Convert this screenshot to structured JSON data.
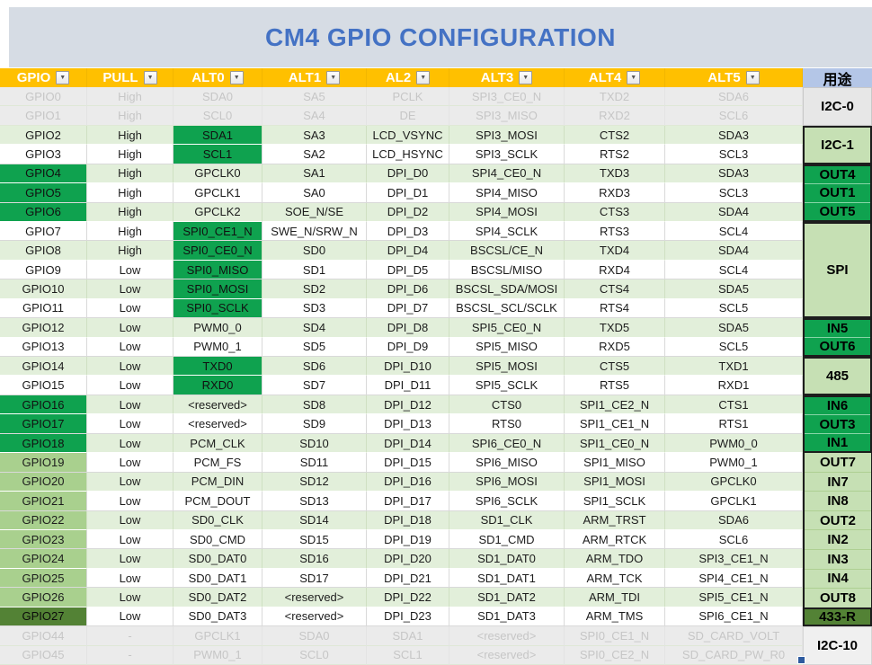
{
  "title": "CM4 GPIO CONFIGURATION",
  "colors": {
    "title_text": "#4472C4",
    "title_bg": "#D6DCE4",
    "header_bg": "#FFC000",
    "header_text": "#FFFFFF",
    "usage_header_bg": "#B4C6E7",
    "band_green": "#E2EFDA",
    "bright_green": "#0FA24F",
    "medium_green": "#A9D08E",
    "dark_green": "#538235",
    "merged_light_green": "#C6E0B4",
    "disabled_row_bg": "#EBEBEB",
    "disabled_text": "#C6C6C6"
  },
  "columns": [
    {
      "label": "GPIO",
      "filter": true
    },
    {
      "label": "PULL",
      "filter": true
    },
    {
      "label": "ALT0",
      "filter": true
    },
    {
      "label": "ALT1",
      "filter": true
    },
    {
      "label": "AL2",
      "filter": true
    },
    {
      "label": "ALT3",
      "filter": true
    },
    {
      "label": "ALT4",
      "filter": true
    },
    {
      "label": "ALT5",
      "filter": true
    },
    {
      "label": "用途",
      "filter": false
    }
  ],
  "rows": [
    {
      "gpio": "GPIO0",
      "pull": "High",
      "alt0": "SDA0",
      "alt1": "SA5",
      "al2": "PCLK",
      "alt3": "SPI3_CE0_N",
      "alt4": "TXD2",
      "alt5": "SDA6",
      "band": "gray"
    },
    {
      "gpio": "GPIO1",
      "pull": "High",
      "alt0": "SCL0",
      "alt1": "SA4",
      "al2": "DE",
      "alt3": "SPI3_MISO",
      "alt4": "RXD2",
      "alt5": "SCL6",
      "band": "gray"
    },
    {
      "gpio": "GPIO2",
      "pull": "High",
      "alt0": "SDA1",
      "alt1": "SA3",
      "al2": "LCD_VSYNC",
      "alt3": "SPI3_MOSI",
      "alt4": "CTS2",
      "alt5": "SDA3",
      "band": "green",
      "alt0_hl": true
    },
    {
      "gpio": "GPIO3",
      "pull": "High",
      "alt0": "SCL1",
      "alt1": "SA2",
      "al2": "LCD_HSYNC",
      "alt3": "SPI3_SCLK",
      "alt4": "RTS2",
      "alt5": "SCL3",
      "band": "white",
      "alt0_hl": true
    },
    {
      "gpio": "GPIO4",
      "pull": "High",
      "alt0": "GPCLK0",
      "alt1": "SA1",
      "al2": "DPI_D0",
      "alt3": "SPI4_CE0_N",
      "alt4": "TXD3",
      "alt5": "SDA3",
      "band": "green",
      "gpio_hl": "bright"
    },
    {
      "gpio": "GPIO5",
      "pull": "High",
      "alt0": "GPCLK1",
      "alt1": "SA0",
      "al2": "DPI_D1",
      "alt3": "SPI4_MISO",
      "alt4": "RXD3",
      "alt5": "SCL3",
      "band": "white",
      "gpio_hl": "bright"
    },
    {
      "gpio": "GPIO6",
      "pull": "High",
      "alt0": "GPCLK2",
      "alt1": "SOE_N/SE",
      "al2": "DPI_D2",
      "alt3": "SPI4_MOSI",
      "alt4": "CTS3",
      "alt5": "SDA4",
      "band": "green",
      "gpio_hl": "bright"
    },
    {
      "gpio": "GPIO7",
      "pull": "High",
      "alt0": "SPI0_CE1_N",
      "alt1": "SWE_N/SRW_N",
      "al2": "DPI_D3",
      "alt3": "SPI4_SCLK",
      "alt4": "RTS3",
      "alt5": "SCL4",
      "band": "white",
      "alt0_hl": true
    },
    {
      "gpio": "GPIO8",
      "pull": "High",
      "alt0": "SPI0_CE0_N",
      "alt1": "SD0",
      "al2": "DPI_D4",
      "alt3": "BSCSL/CE_N",
      "alt4": "TXD4",
      "alt5": "SDA4",
      "band": "green",
      "alt0_hl": true
    },
    {
      "gpio": "GPIO9",
      "pull": "Low",
      "alt0": "SPI0_MISO",
      "alt1": "SD1",
      "al2": "DPI_D5",
      "alt3": "BSCSL/MISO",
      "alt4": "RXD4",
      "alt5": "SCL4",
      "band": "white",
      "alt0_hl": true
    },
    {
      "gpio": "GPIO10",
      "pull": "Low",
      "alt0": "SPI0_MOSI",
      "alt1": "SD2",
      "al2": "DPI_D6",
      "alt3": "BSCSL_SDA/MOSI",
      "alt4": "CTS4",
      "alt5": "SDA5",
      "band": "green",
      "alt0_hl": true
    },
    {
      "gpio": "GPIO11",
      "pull": "Low",
      "alt0": "SPI0_SCLK",
      "alt1": "SD3",
      "al2": "DPI_D7",
      "alt3": "BSCSL_SCL/SCLK",
      "alt4": "RTS4",
      "alt5": "SCL5",
      "band": "white",
      "alt0_hl": true
    },
    {
      "gpio": "GPIO12",
      "pull": "Low",
      "alt0": "PWM0_0",
      "alt1": "SD4",
      "al2": "DPI_D8",
      "alt3": "SPI5_CE0_N",
      "alt4": "TXD5",
      "alt5": "SDA5",
      "band": "green"
    },
    {
      "gpio": "GPIO13",
      "pull": "Low",
      "alt0": "PWM0_1",
      "alt1": "SD5",
      "al2": "DPI_D9",
      "alt3": "SPI5_MISO",
      "alt4": "RXD5",
      "alt5": "SCL5",
      "band": "white"
    },
    {
      "gpio": "GPIO14",
      "pull": "Low",
      "alt0": "TXD0",
      "alt1": "SD6",
      "al2": "DPI_D10",
      "alt3": "SPI5_MOSI",
      "alt4": "CTS5",
      "alt5": "TXD1",
      "band": "green",
      "alt0_hl": true
    },
    {
      "gpio": "GPIO15",
      "pull": "Low",
      "alt0": "RXD0",
      "alt1": "SD7",
      "al2": "DPI_D11",
      "alt3": "SPI5_SCLK",
      "alt4": "RTS5",
      "alt5": "RXD1",
      "band": "white",
      "alt0_hl": true
    },
    {
      "gpio": "GPIO16",
      "pull": "Low",
      "alt0": "<reserved>",
      "alt1": "SD8",
      "al2": "DPI_D12",
      "alt3": "CTS0",
      "alt4": "SPI1_CE2_N",
      "alt5": "CTS1",
      "band": "green",
      "gpio_hl": "bright"
    },
    {
      "gpio": "GPIO17",
      "pull": "Low",
      "alt0": "<reserved>",
      "alt1": "SD9",
      "al2": "DPI_D13",
      "alt3": "RTS0",
      "alt4": "SPI1_CE1_N",
      "alt5": "RTS1",
      "band": "white",
      "gpio_hl": "bright"
    },
    {
      "gpio": "GPIO18",
      "pull": "Low",
      "alt0": "PCM_CLK",
      "alt1": "SD10",
      "al2": "DPI_D14",
      "alt3": "SPI6_CE0_N",
      "alt4": "SPI1_CE0_N",
      "alt5": "PWM0_0",
      "band": "green",
      "gpio_hl": "bright"
    },
    {
      "gpio": "GPIO19",
      "pull": "Low",
      "alt0": "PCM_FS",
      "alt1": "SD11",
      "al2": "DPI_D15",
      "alt3": "SPI6_MISO",
      "alt4": "SPI1_MISO",
      "alt5": "PWM0_1",
      "band": "white",
      "gpio_hl": "medium"
    },
    {
      "gpio": "GPIO20",
      "pull": "Low",
      "alt0": "PCM_DIN",
      "alt1": "SD12",
      "al2": "DPI_D16",
      "alt3": "SPI6_MOSI",
      "alt4": "SPI1_MOSI",
      "alt5": "GPCLK0",
      "band": "green",
      "gpio_hl": "medium"
    },
    {
      "gpio": "GPIO21",
      "pull": "Low",
      "alt0": "PCM_DOUT",
      "alt1": "SD13",
      "al2": "DPI_D17",
      "alt3": "SPI6_SCLK",
      "alt4": "SPI1_SCLK",
      "alt5": "GPCLK1",
      "band": "white",
      "gpio_hl": "medium"
    },
    {
      "gpio": "GPIO22",
      "pull": "Low",
      "alt0": "SD0_CLK",
      "alt1": "SD14",
      "al2": "DPI_D18",
      "alt3": "SD1_CLK",
      "alt4": "ARM_TRST",
      "alt5": "SDA6",
      "band": "green",
      "gpio_hl": "medium"
    },
    {
      "gpio": "GPIO23",
      "pull": "Low",
      "alt0": "SD0_CMD",
      "alt1": "SD15",
      "al2": "DPI_D19",
      "alt3": "SD1_CMD",
      "alt4": "ARM_RTCK",
      "alt5": "SCL6",
      "band": "white",
      "gpio_hl": "medium"
    },
    {
      "gpio": "GPIO24",
      "pull": "Low",
      "alt0": "SD0_DAT0",
      "alt1": "SD16",
      "al2": "DPI_D20",
      "alt3": "SD1_DAT0",
      "alt4": "ARM_TDO",
      "alt5": "SPI3_CE1_N",
      "band": "green",
      "gpio_hl": "medium"
    },
    {
      "gpio": "GPIO25",
      "pull": "Low",
      "alt0": "SD0_DAT1",
      "alt1": "SD17",
      "al2": "DPI_D21",
      "alt3": "SD1_DAT1",
      "alt4": "ARM_TCK",
      "alt5": "SPI4_CE1_N",
      "band": "white",
      "gpio_hl": "medium"
    },
    {
      "gpio": "GPIO26",
      "pull": "Low",
      "alt0": "SD0_DAT2",
      "alt1": "<reserved>",
      "al2": "DPI_D22",
      "alt3": "SD1_DAT2",
      "alt4": "ARM_TDI",
      "alt5": "SPI5_CE1_N",
      "band": "green",
      "gpio_hl": "medium"
    },
    {
      "gpio": "GPIO27",
      "pull": "Low",
      "alt0": "SD0_DAT3",
      "alt1": "<reserved>",
      "al2": "DPI_D23",
      "alt3": "SD1_DAT3",
      "alt4": "ARM_TMS",
      "alt5": "SPI6_CE1_N",
      "band": "white",
      "gpio_hl": "dark"
    },
    {
      "gpio": "GPIO44",
      "pull": "-",
      "alt0": "GPCLK1",
      "alt1": "SDA0",
      "al2": "SDA1",
      "alt3": "<reserved>",
      "alt4": "SPI0_CE1_N",
      "alt5": "SD_CARD_VOLT",
      "band": "gray"
    },
    {
      "gpio": "GPIO45",
      "pull": "-",
      "alt0": "PWM0_1",
      "alt1": "SCL0",
      "al2": "SCL1",
      "alt3": "<reserved>",
      "alt4": "SPI0_CE2_N",
      "alt5": "SD_CARD_PW_R0",
      "band": "gray"
    }
  ],
  "usage_segments": [
    {
      "labels": [
        "I2C-0"
      ],
      "rows": 2,
      "style": "gray"
    },
    {
      "labels": [
        "I2C-1"
      ],
      "rows": 2,
      "style": "light"
    },
    {
      "labels": [
        "OUT4",
        "OUT1",
        "OUT5"
      ],
      "rows": 3,
      "style": "bright"
    },
    {
      "labels": [
        "SPI"
      ],
      "rows": 5,
      "style": "light"
    },
    {
      "labels": [
        "IN5",
        "OUT6"
      ],
      "rows": 2,
      "style": "bright"
    },
    {
      "labels": [
        "485"
      ],
      "rows": 2,
      "style": "light"
    },
    {
      "labels": [
        "IN6",
        "OUT3",
        "IN1"
      ],
      "rows": 3,
      "style": "bright"
    },
    {
      "labels": [
        "OUT7",
        "IN7",
        "IN8",
        "OUT2",
        "IN2",
        "IN3",
        "IN4",
        "OUT8"
      ],
      "rows": 8,
      "style": "lightrun"
    },
    {
      "labels": [
        "433-R"
      ],
      "rows": 1,
      "style": "dark"
    },
    {
      "labels": [
        "I2C-10"
      ],
      "rows": 2,
      "style": "gray2"
    }
  ]
}
